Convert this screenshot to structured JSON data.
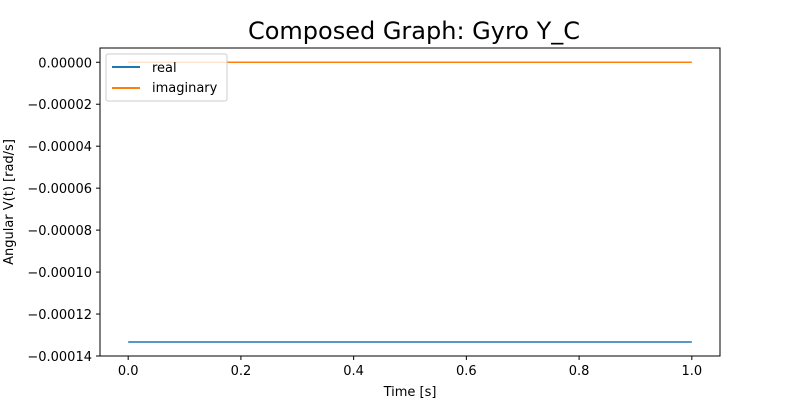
{
  "chart_data": {
    "type": "line",
    "title": "Composed Graph: Gyro Y_C",
    "xlabel": "Time [s]",
    "ylabel": "Angular V(t) [rad/s]",
    "xlim": [
      -0.05,
      1.05
    ],
    "ylim": [
      -0.00014,
      6.8e-06
    ],
    "x_ticks": [
      0.0,
      0.2,
      0.4,
      0.6,
      0.8,
      1.0
    ],
    "x_tick_labels": [
      "0.0",
      "0.2",
      "0.4",
      "0.6",
      "0.8",
      "1.0"
    ],
    "y_ticks": [
      0.0,
      -2e-05,
      -4e-05,
      -6e-05,
      -8e-05,
      -0.0001,
      -0.00012,
      -0.00014
    ],
    "y_tick_labels": [
      "0.00000",
      "−0.00002",
      "−0.00004",
      "−0.00006",
      "−0.00008",
      "−0.00010",
      "−0.00012",
      "−0.00014"
    ],
    "grid": false,
    "legend": "top-left",
    "series": [
      {
        "name": "real",
        "color": "#1f77b4",
        "x": [
          0.0,
          1.0
        ],
        "y": [
          -0.0001333,
          -0.0001333
        ]
      },
      {
        "name": "imaginary",
        "color": "#ff7f0e",
        "x": [
          0.0,
          1.0
        ],
        "y": [
          0.0,
          0.0
        ]
      }
    ]
  }
}
